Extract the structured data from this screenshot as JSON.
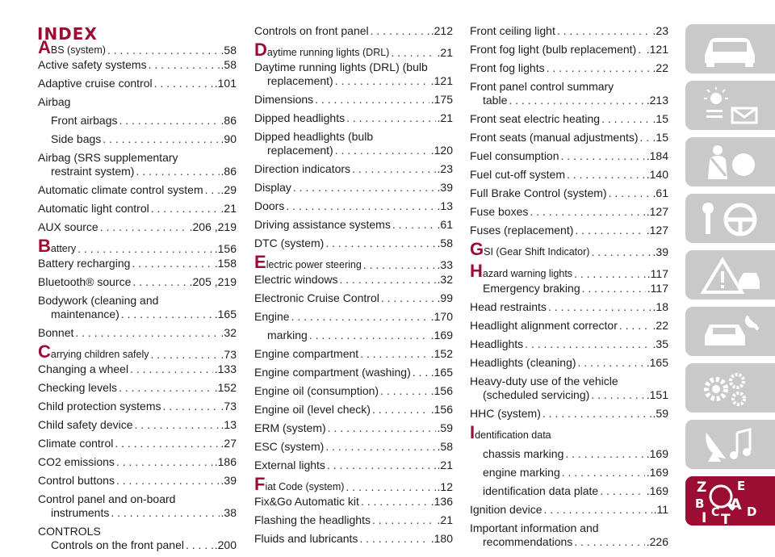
{
  "title": "INDEX",
  "col1": {
    "abs_letter": "A",
    "abs_rest": "BS (system)",
    "abs_page": ".58",
    "e1_label": "Active safety systems",
    "e1_page": ".58",
    "e2_label": "Adaptive cruise control",
    "e2_page": ".101",
    "e3_label": "Airbag",
    "e4_label": "Front airbags",
    "e4_page": ".86",
    "e5_label": "Side bags",
    "e5_page": ".90",
    "e6_line1": "Airbag (SRS supplementary",
    "e6_line2": "restraint system)",
    "e6_page": ".86",
    "e7_label": "Automatic climate control system",
    "e7_page": ".29",
    "e8_label": "Automatic light control",
    "e8_page": ".21",
    "e9_label": "AUX source",
    "e9_page": ".206 ,219",
    "bat_letter": "B",
    "bat_rest": "attery",
    "bat_page": ".156",
    "e10_label": "Battery recharging",
    "e10_page": ".158",
    "e11_label": "Bluetooth® source",
    "e11_page": ".205 ,219",
    "e12_line1": "Bodywork (cleaning and",
    "e12_line2": "maintenance)",
    "e12_page": ".165",
    "e13_label": "Bonnet",
    "e13_page": ".32",
    "car_letter": "C",
    "car_rest": "arrying children safely",
    "car_page": ".73",
    "e14_label": "Changing a wheel",
    "e14_page": ".133",
    "e15_label": "Checking levels",
    "e15_page": ".152",
    "e16_label": "Child protection systems",
    "e16_page": ".73",
    "e17_label": "Child safety device",
    "e17_page": ".13",
    "e18_label": "Climate control",
    "e18_page": ".27",
    "e19_label": "CO2 emissions",
    "e19_page": ".186",
    "e20_label": "Control buttons",
    "e20_page": ".39",
    "e21_line1": "Control panel and on-board",
    "e21_line2": "instruments",
    "e21_page": ".38",
    "e22_line1": "CONTROLS",
    "e22_line2": "Controls on the front panel",
    "e22_page": ".200"
  },
  "col2": {
    "e1_label": "Controls on front panel",
    "e1_page": ".212",
    "drl_letter": "D",
    "drl_rest": "aytime running lights (DRL)",
    "drl_page": ".21",
    "e2_line1": "Daytime running lights (DRL) (bulb",
    "e2_line2": "replacement)",
    "e2_page": ".121",
    "e3_label": "Dimensions",
    "e3_page": ".175",
    "e4_label": "Dipped headlights",
    "e4_page": ".21",
    "e5_line1": "Dipped headlights (bulb",
    "e5_line2": "replacement)",
    "e5_page": ".120",
    "e6_label": "Direction indicators",
    "e6_page": ".23",
    "e7_label": "Display",
    "e7_page": ".39",
    "e8_label": "Doors",
    "e8_page": ".13",
    "e9_label": "Driving assistance systems",
    "e9_page": ".61",
    "e10_label": "DTC (system)",
    "e10_page": ".58",
    "eps_letter": "E",
    "eps_rest": "lectric power steering",
    "eps_page": ".33",
    "e11_label": "Electric windows",
    "e11_page": ".32",
    "e12_label": "Electronic Cruise Control",
    "e12_page": ".99",
    "e13_label": "Engine",
    "e13_page": ".170",
    "e14_label": "marking",
    "e14_page": ".169",
    "e15_label": "Engine compartment",
    "e15_page": ".152",
    "e16_label": "Engine compartment (washing)",
    "e16_page": ".165",
    "e17_label": "Engine oil (consumption)",
    "e17_page": ".156",
    "e18_label": "Engine oil (level check)",
    "e18_page": ".156",
    "e19_label": "ERM (system)",
    "e19_page": ".59",
    "e20_label": "ESC (system)",
    "e20_page": ".58",
    "e21_label": "External lights",
    "e21_page": ".21",
    "fiat_letter": "F",
    "fiat_rest": "iat Code (system)",
    "fiat_page": ".12",
    "e22_label": "Fix&Go Automatic kit",
    "e22_page": ".136",
    "e23_label": "Flashing the headlights",
    "e23_page": ".21",
    "e24_label": "Fluids and lubricants",
    "e24_page": ".180"
  },
  "col3": {
    "e1_label": "Front ceiling light",
    "e1_page": ".23",
    "e2_label": "Front fog light (bulb replacement)",
    "e2_page": ".121",
    "e3_label": "Front fog lights",
    "e3_page": ".22",
    "e4_line1": "Front panel control summary",
    "e4_line2": "table",
    "e4_page": ".213",
    "e5_label": "Front seat electric heating",
    "e5_page": ".15",
    "e6_label": "Front seats (manual adjustments)",
    "e6_page": ".15",
    "e7_label": "Fuel consumption",
    "e7_page": ".184",
    "e8_label": "Fuel cut-off system",
    "e8_page": ".140",
    "e9_label": "Full Brake Control (system)",
    "e9_page": ".61",
    "e10_label": "Fuse boxes",
    "e10_page": ".127",
    "e11_label": "Fuses (replacement)",
    "e11_page": ".127",
    "gsi_letter": "G",
    "gsi_rest": "SI (Gear Shift Indicator)",
    "gsi_page": ".39",
    "haz_letter": "H",
    "haz_rest": "azard warning lights",
    "haz_page": ".117",
    "e12_label": "Emergency braking",
    "e12_page": ".117",
    "e13_label": "Head restraints",
    "e13_page": ".18",
    "e14_label": "Headlight alignment corrector",
    "e14_page": ".22",
    "e15_label": "Headlights",
    "e15_page": ".35",
    "e16_label": "Headlights (cleaning)",
    "e16_page": ".165",
    "e17_line1": "Heavy-duty use of the vehicle",
    "e17_line2": "(scheduled servicing)",
    "e17_page": ".151",
    "e18_label": "HHC (system)",
    "e18_page": ".59",
    "id_letter": "I",
    "id_rest": "dentification data",
    "e19_label": "chassis marking",
    "e19_page": ".169",
    "e20_label": "engine marking",
    "e20_page": ".169",
    "e21_label": "identification data plate",
    "e21_page": ".169",
    "e22_label": "Ignition device",
    "e22_page": ".11",
    "e23_line1": "Important information and",
    "e23_line2": "recommendations",
    "e23_page": ".226"
  },
  "sidebar": {
    "tab_icons": [
      "car-icon",
      "dashboard-warning-icon",
      "seatbelt-airbag-icon",
      "key-steering-wheel-icon",
      "warning-triangle-car-icon",
      "wrench-car-icon",
      "gears-icon",
      "satellite-music-icon",
      "index-letters-icon"
    ],
    "index_letters": [
      "Z",
      "E",
      "B",
      "A",
      "D",
      "I",
      "C",
      "T"
    ],
    "active_color": "#9b0d33",
    "inactive_color": "#c9c9c9"
  },
  "colors": {
    "accent": "#9b0d33",
    "text": "#1c1c1c"
  }
}
